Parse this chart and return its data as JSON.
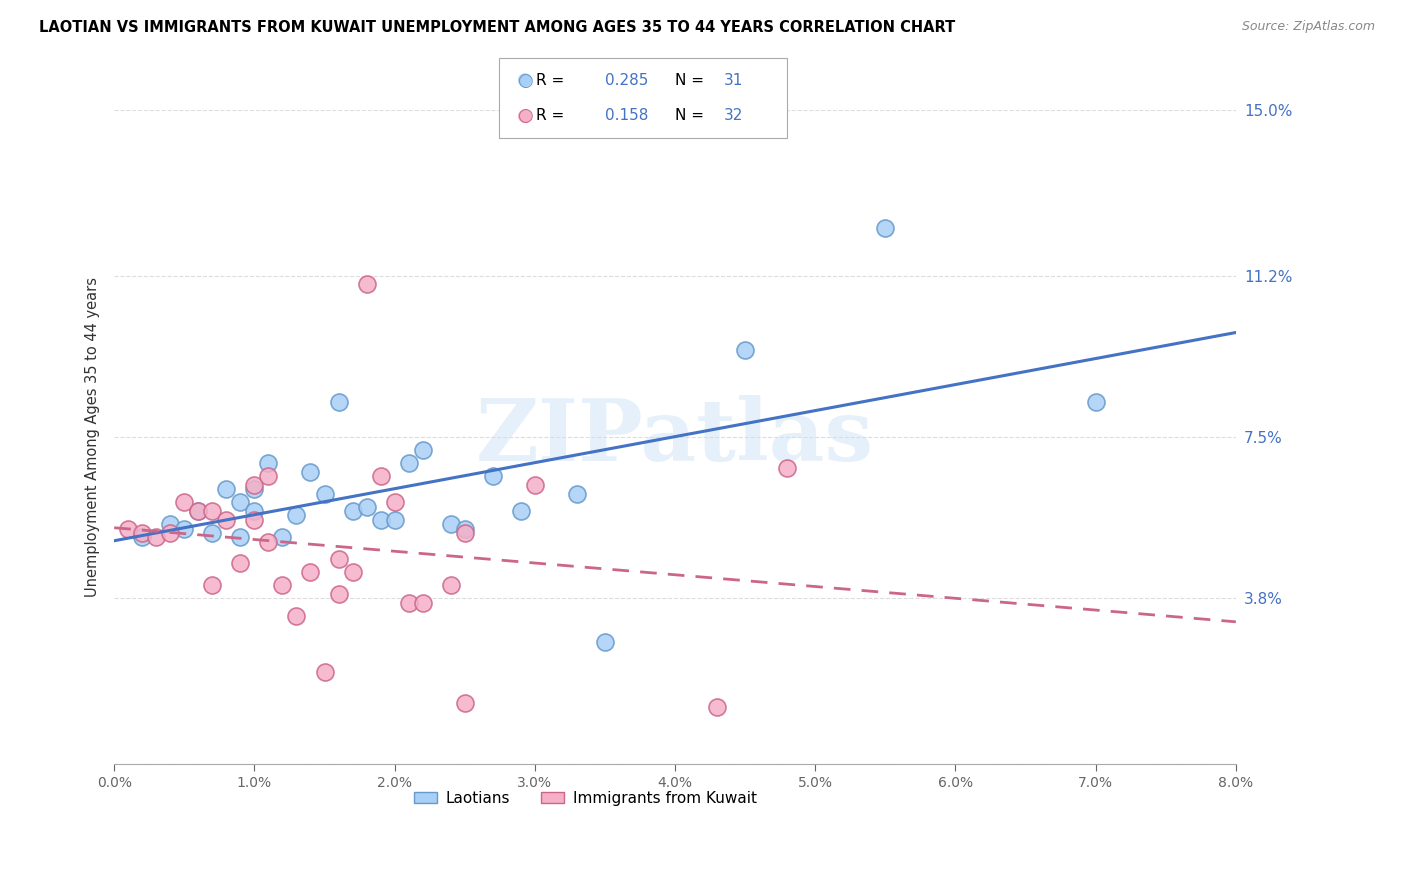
{
  "title": "LAOTIAN VS IMMIGRANTS FROM KUWAIT UNEMPLOYMENT AMONG AGES 35 TO 44 YEARS CORRELATION CHART",
  "source": "Source: ZipAtlas.com",
  "ylabel_left": "Unemployment Among Ages 35 to 44 years",
  "xlim": [
    0.0,
    0.08
  ],
  "ylim": [
    0.0,
    0.15
  ],
  "xticks": [
    0.0,
    0.01,
    0.02,
    0.03,
    0.04,
    0.05,
    0.06,
    0.07,
    0.08
  ],
  "xtick_labels": [
    "0.0%",
    "1.0%",
    "2.0%",
    "3.0%",
    "4.0%",
    "5.0%",
    "6.0%",
    "7.0%",
    "8.0%"
  ],
  "yticks_right": [
    0.0,
    0.038,
    0.075,
    0.112,
    0.15
  ],
  "ytick_right_labels": [
    "",
    "3.8%",
    "7.5%",
    "11.2%",
    "15.0%"
  ],
  "watermark": "ZIPatlas",
  "series1_label": "Laotians",
  "series2_label": "Immigrants from Kuwait",
  "series1_fill": "#a8cff5",
  "series2_fill": "#f5b0c8",
  "series1_edge": "#6699cc",
  "series2_edge": "#cc6688",
  "trend1_color": "#4472c4",
  "trend2_color": "#cc6688",
  "blue_R": 0.285,
  "blue_N": 31,
  "pink_R": 0.158,
  "pink_N": 32,
  "blue_dots_x": [
    0.002,
    0.004,
    0.005,
    0.006,
    0.007,
    0.008,
    0.009,
    0.009,
    0.01,
    0.01,
    0.011,
    0.012,
    0.013,
    0.014,
    0.015,
    0.016,
    0.017,
    0.018,
    0.019,
    0.02,
    0.021,
    0.022,
    0.024,
    0.025,
    0.027,
    0.029,
    0.033,
    0.035,
    0.045,
    0.055,
    0.07
  ],
  "blue_dots_y": [
    0.052,
    0.055,
    0.054,
    0.058,
    0.053,
    0.063,
    0.052,
    0.06,
    0.063,
    0.058,
    0.069,
    0.052,
    0.057,
    0.067,
    0.062,
    0.083,
    0.058,
    0.059,
    0.056,
    0.056,
    0.069,
    0.072,
    0.055,
    0.054,
    0.066,
    0.058,
    0.062,
    0.028,
    0.095,
    0.123,
    0.083
  ],
  "pink_dots_x": [
    0.001,
    0.002,
    0.003,
    0.004,
    0.005,
    0.006,
    0.007,
    0.007,
    0.008,
    0.009,
    0.01,
    0.01,
    0.011,
    0.011,
    0.012,
    0.013,
    0.014,
    0.015,
    0.016,
    0.016,
    0.017,
    0.018,
    0.019,
    0.02,
    0.021,
    0.022,
    0.024,
    0.025,
    0.025,
    0.03,
    0.043,
    0.048
  ],
  "pink_dots_y": [
    0.054,
    0.053,
    0.052,
    0.053,
    0.06,
    0.058,
    0.058,
    0.041,
    0.056,
    0.046,
    0.056,
    0.064,
    0.051,
    0.066,
    0.041,
    0.034,
    0.044,
    0.021,
    0.039,
    0.047,
    0.044,
    0.11,
    0.066,
    0.06,
    0.037,
    0.037,
    0.041,
    0.053,
    0.014,
    0.064,
    0.013,
    0.068
  ]
}
